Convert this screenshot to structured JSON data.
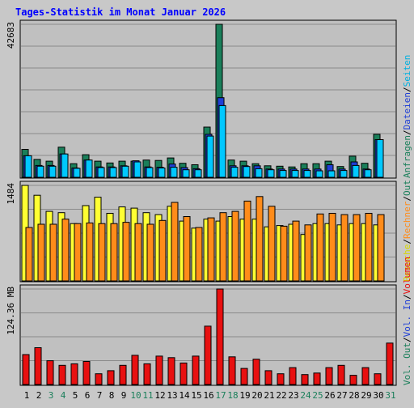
{
  "title": "Tages-Statistik im Monat Januar 2026",
  "colors": {
    "background": "#c8c8c8",
    "panel": "#c0c0c0",
    "title": "#0000ff",
    "gridline": "#8a8a8a",
    "anfragen": "#1a7f5a",
    "dateien": "#1f3fd6",
    "seiten": "#00c8ff",
    "besuche": "#ffff33",
    "rechner": "#ff8c1a",
    "volumen": "#e81010",
    "weekend_label": "#1a7f5a",
    "weekday_label": "#000000"
  },
  "legend": {
    "panel1": [
      {
        "text": "Anfragen",
        "color": "#1a7f5a"
      },
      {
        "text": "/",
        "color": "#000000"
      },
      {
        "text": "Dateien",
        "color": "#1f3fd6"
      },
      {
        "text": "/",
        "color": "#000000"
      },
      {
        "text": "Seiten",
        "color": "#00b0e0"
      }
    ],
    "panel2": [
      {
        "text": "Besuche",
        "color": "#d8d800"
      },
      {
        "text": "/",
        "color": "#000000"
      },
      {
        "text": "Rechner",
        "color": "#ff8c1a"
      },
      {
        "text": "/",
        "color": "#000000"
      },
      {
        "text": "Out",
        "color": "#1a7f5a"
      }
    ],
    "panel3": [
      {
        "text": "Vol. Out",
        "color": "#1a7f5a"
      },
      {
        "text": "/",
        "color": "#000000"
      },
      {
        "text": "Vol. In",
        "color": "#1f3fd6"
      },
      {
        "text": "/",
        "color": "#000000"
      },
      {
        "text": "Volumen",
        "color": "#e81010"
      }
    ]
  },
  "chart_data": [
    {
      "type": "bar",
      "title": "Tages-Statistik im Monat Januar 2026",
      "categories": [
        "1",
        "2",
        "3",
        "4",
        "5",
        "6",
        "7",
        "8",
        "9",
        "10",
        "11",
        "12",
        "13",
        "14",
        "15",
        "16",
        "17",
        "18",
        "19",
        "20",
        "21",
        "22",
        "23",
        "24",
        "25",
        "26",
        "27",
        "28",
        "29",
        "30",
        "31"
      ],
      "weekend_days": [
        "3",
        "4",
        "10",
        "11",
        "17",
        "18",
        "24",
        "25",
        "31"
      ],
      "ymax_label": "42683",
      "ylim": [
        0,
        42683
      ],
      "grid": true,
      "series": [
        {
          "name": "Anfragen",
          "values": [
            7800,
            5000,
            4500,
            8400,
            3800,
            6300,
            4500,
            4000,
            4500,
            4500,
            4800,
            4700,
            5400,
            3900,
            3500,
            14000,
            42683,
            4800,
            4500,
            3800,
            3200,
            3100,
            2900,
            3800,
            3800,
            4500,
            3000,
            5900,
            3900,
            12000,
            0
          ]
        },
        {
          "name": "Dateien",
          "values": [
            6000,
            3300,
            3300,
            6500,
            2600,
            4800,
            2900,
            2900,
            3200,
            4600,
            2900,
            2800,
            3700,
            2700,
            2400,
            12000,
            22200,
            3200,
            3200,
            3200,
            2300,
            2300,
            2300,
            2300,
            2300,
            3500,
            2300,
            4300,
            2300,
            10500,
            0
          ]
        },
        {
          "name": "Seiten",
          "values": [
            6000,
            3100,
            3100,
            6500,
            2500,
            4800,
            2700,
            2700,
            3100,
            4300,
            2700,
            2600,
            2800,
            2100,
            2100,
            11500,
            20000,
            2800,
            3000,
            2400,
            2100,
            1900,
            1900,
            1900,
            1800,
            1800,
            1900,
            3300,
            2100,
            10500,
            0
          ]
        }
      ]
    },
    {
      "type": "bar",
      "categories": [
        "1",
        "2",
        "3",
        "4",
        "5",
        "6",
        "7",
        "8",
        "9",
        "10",
        "11",
        "12",
        "13",
        "14",
        "15",
        "16",
        "17",
        "18",
        "19",
        "20",
        "21",
        "22",
        "23",
        "24",
        "25",
        "26",
        "27",
        "28",
        "29",
        "30",
        "31"
      ],
      "ymax_label": "1484",
      "ylim": [
        0,
        1484
      ],
      "grid": true,
      "series": [
        {
          "name": "Besuche",
          "values": [
            1484,
            1330,
            1080,
            1060,
            890,
            1170,
            1300,
            1050,
            1150,
            1130,
            1060,
            1030,
            1160,
            930,
            820,
            960,
            930,
            1000,
            960,
            960,
            840,
            860,
            880,
            720,
            890,
            890,
            870,
            890,
            890,
            870,
            0
          ]
        },
        {
          "name": "Rechner",
          "values": [
            830,
            880,
            880,
            960,
            890,
            900,
            890,
            890,
            910,
            890,
            880,
            940,
            1220,
            1000,
            830,
            980,
            1060,
            1080,
            1240,
            1310,
            1160,
            850,
            930,
            870,
            1040,
            1050,
            1030,
            1030,
            1050,
            1030,
            0
          ]
        }
      ]
    },
    {
      "type": "bar",
      "categories": [
        "1",
        "2",
        "3",
        "4",
        "5",
        "6",
        "7",
        "8",
        "9",
        "10",
        "11",
        "12",
        "13",
        "14",
        "15",
        "16",
        "17",
        "18",
        "19",
        "20",
        "21",
        "22",
        "23",
        "24",
        "25",
        "26",
        "27",
        "28",
        "29",
        "30",
        "31"
      ],
      "ymax_label": "124.36 MB",
      "ylim": [
        0,
        124.36
      ],
      "grid": true,
      "series": [
        {
          "name": "Volumen",
          "values": [
            39,
            48,
            31,
            25,
            27,
            30,
            14,
            18,
            25,
            38,
            27,
            37,
            35,
            28,
            37,
            76,
            124.36,
            36,
            21,
            33,
            18,
            14,
            22,
            13,
            15,
            22,
            25,
            12,
            22,
            14,
            54
          ]
        }
      ]
    }
  ]
}
